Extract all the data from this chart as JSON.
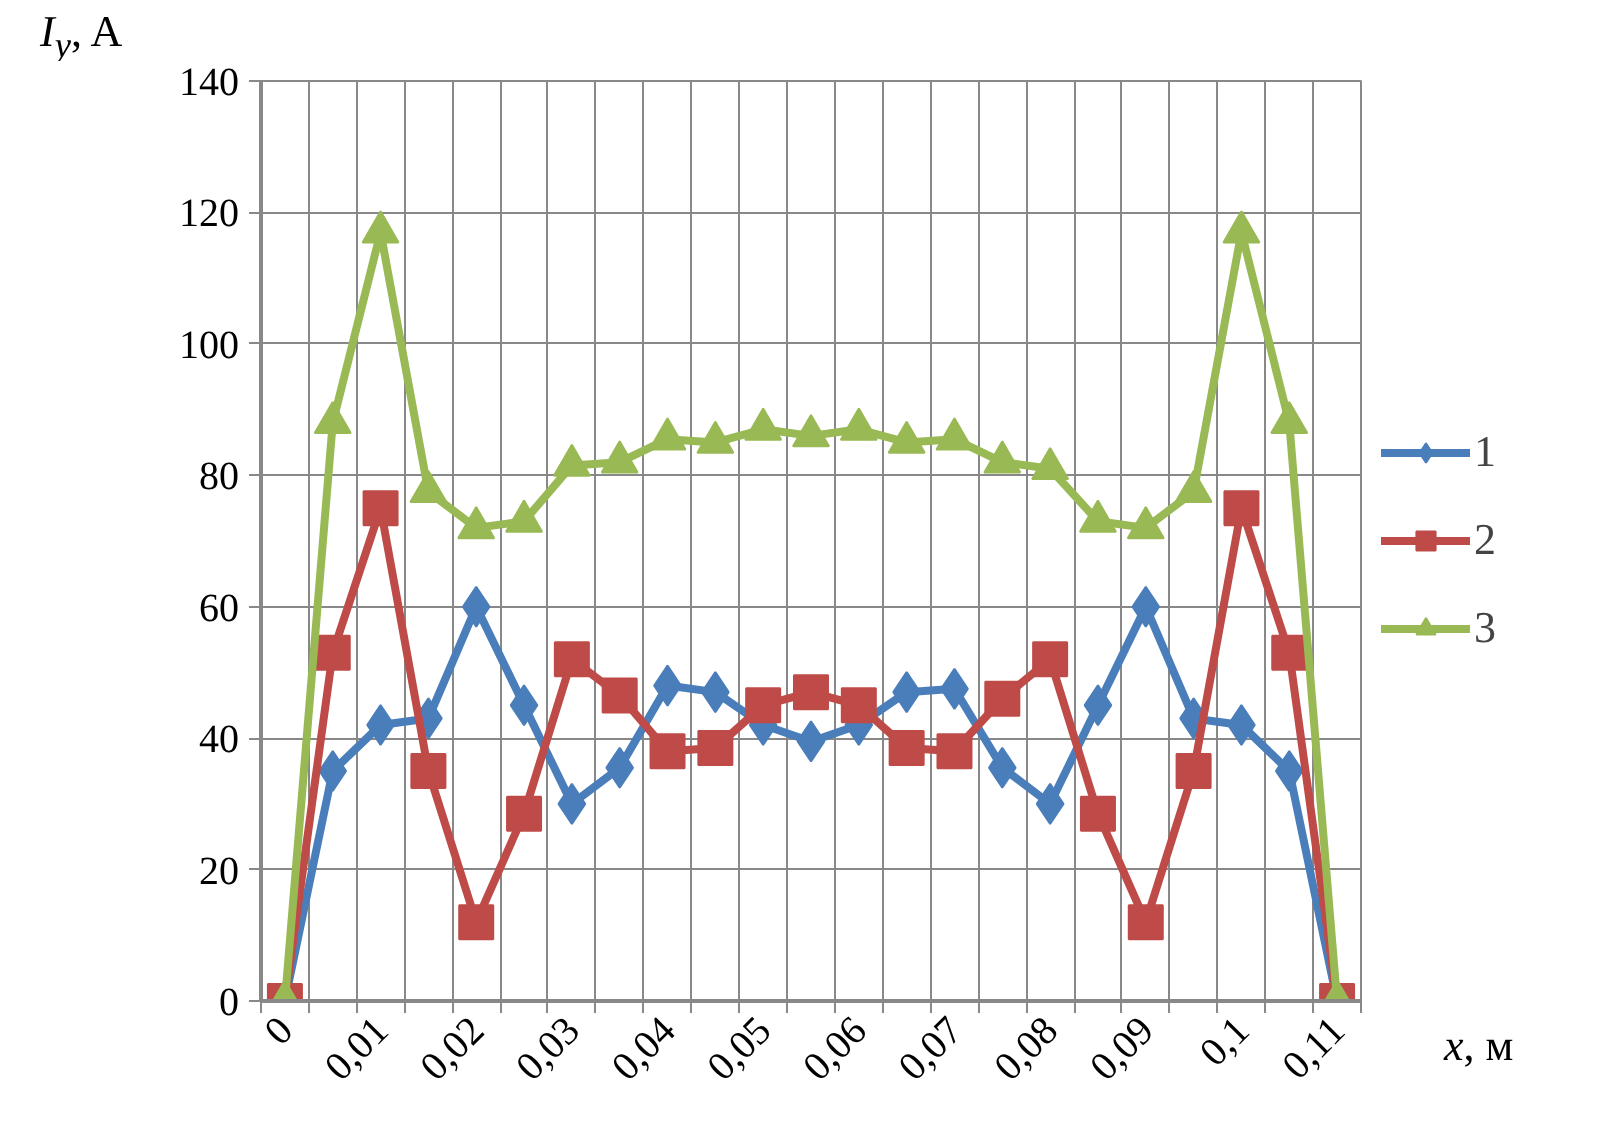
{
  "chart_data": {
    "type": "line",
    "ylabel": "I$_{y}$, A",
    "xlabel": "x, м",
    "categories": [
      "0",
      null,
      "0,01",
      null,
      "0,02",
      null,
      "0,03",
      null,
      "0,04",
      null,
      "0,05",
      null,
      "0,06",
      null,
      "0,07",
      null,
      "0,08",
      null,
      "0,09",
      null,
      "0,1",
      null,
      "0,11"
    ],
    "series": [
      {
        "name": "1",
        "color": "#4a7ebb",
        "marker": "diamond",
        "values": [
          0,
          35,
          42,
          43,
          60,
          45,
          30,
          35.5,
          48,
          47,
          42,
          39.5,
          42,
          47,
          47.5,
          35.5,
          30,
          45,
          60,
          43,
          42,
          35,
          0
        ]
      },
      {
        "name": "2",
        "color": "#be4b48",
        "marker": "square",
        "values": [
          0,
          53,
          75,
          35,
          12,
          28.5,
          52,
          46.5,
          38,
          38.5,
          45,
          47,
          45,
          38.5,
          38,
          46,
          52,
          28.5,
          12,
          35,
          75,
          53,
          0
        ]
      },
      {
        "name": "3",
        "color": "#98b954",
        "marker": "triangle",
        "values": [
          0,
          88,
          117,
          77.5,
          72,
          73,
          81.5,
          82,
          85.5,
          85,
          87,
          86,
          87,
          85,
          85.5,
          82,
          81,
          73,
          72,
          77.5,
          117,
          88,
          0
        ]
      }
    ],
    "ylim": [
      0,
      140
    ],
    "yticks": [
      0,
      20,
      40,
      60,
      80,
      100,
      120,
      140
    ],
    "grid": true,
    "legend": "right",
    "line_style": "solid"
  }
}
